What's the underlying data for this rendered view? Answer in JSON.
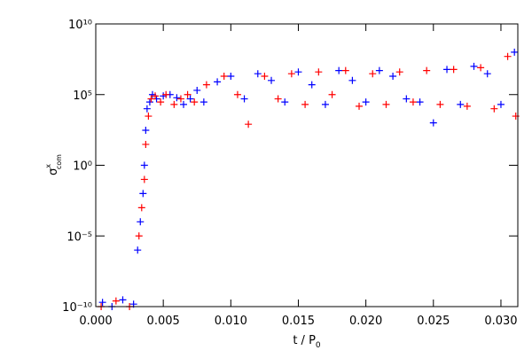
{
  "chart_data": {
    "type": "scatter",
    "xlabel": {
      "base": "t / P",
      "sub": "0"
    },
    "ylabel": {
      "base": "σ",
      "sup": "x",
      "sub": "com"
    },
    "xlim": [
      0,
      0.03125
    ],
    "ylim": [
      1e-10,
      10000000000.0
    ],
    "ylog": true,
    "xticks": [
      {
        "value": 0,
        "label": "0.000"
      },
      {
        "value": 0.005,
        "label": "0.005"
      },
      {
        "value": 0.01,
        "label": "0.010"
      },
      {
        "value": 0.015,
        "label": "0.015"
      },
      {
        "value": 0.02,
        "label": "0.020"
      },
      {
        "value": 0.025,
        "label": "0.025"
      },
      {
        "value": 0.03,
        "label": "0.030"
      }
    ],
    "yticks": [
      {
        "value": 1e-10,
        "label": "10⁻¹⁰"
      },
      {
        "value": 1e-05,
        "label": "10⁻⁵"
      },
      {
        "value": 1,
        "label": "10⁰"
      },
      {
        "value": 100000.0,
        "label": "10⁵"
      },
      {
        "value": 10000000000.0,
        "label": "10¹⁰"
      }
    ],
    "series": [
      {
        "color": "#0000ff",
        "x": [
          0.0005,
          0.0012,
          0.002,
          0.0028,
          0.0031,
          0.0033,
          0.0035,
          0.0036,
          0.0037,
          0.0038,
          0.004,
          0.0042,
          0.0045,
          0.005,
          0.0055,
          0.006,
          0.0065,
          0.007,
          0.0075,
          0.008,
          0.009,
          0.01,
          0.011,
          0.012,
          0.013,
          0.014,
          0.015,
          0.016,
          0.017,
          0.018,
          0.019,
          0.02,
          0.021,
          0.022,
          0.023,
          0.024,
          0.025,
          0.026,
          0.027,
          0.028,
          0.029,
          0.03,
          0.031
        ],
        "values": [
          2e-10,
          1e-10,
          3e-10,
          1.5e-10,
          1e-06,
          0.0001,
          0.01,
          1,
          300,
          10000,
          30000,
          100000,
          50000,
          80000,
          100000,
          60000,
          20000,
          50000,
          200000,
          30000,
          800000,
          2000000,
          50000,
          3000000,
          1000000,
          30000,
          4000000,
          500000,
          20000,
          5000000,
          1000000,
          30000,
          5000000,
          2000000,
          50000,
          30000,
          1000,
          6000000,
          20000,
          10000000,
          3000000,
          20000,
          100000000
        ]
      },
      {
        "color": "#ff0000",
        "x": [
          0.0004,
          0.0015,
          0.0025,
          0.0032,
          0.0034,
          0.0036,
          0.0037,
          0.0039,
          0.0041,
          0.0044,
          0.0048,
          0.0052,
          0.0058,
          0.0063,
          0.0068,
          0.0073,
          0.0082,
          0.0095,
          0.0105,
          0.0113,
          0.0125,
          0.0135,
          0.0145,
          0.0155,
          0.0165,
          0.0175,
          0.0185,
          0.0195,
          0.0205,
          0.0215,
          0.0225,
          0.0235,
          0.0245,
          0.0255,
          0.0265,
          0.0275,
          0.0285,
          0.0295,
          0.0305,
          0.0311
        ],
        "values": [
          1e-10,
          2.5e-10,
          1e-10,
          1e-05,
          0.001,
          0.1,
          30,
          3000,
          50000,
          80000,
          30000,
          100000,
          20000,
          50000,
          100000,
          30000,
          500000,
          2000000,
          100000,
          800,
          2000000,
          50000,
          3000000,
          20000,
          4000000,
          100000,
          5000000,
          15000,
          3000000,
          20000,
          4000000,
          30000,
          5000000,
          20000,
          6000000,
          15000,
          8000000,
          10000,
          50000000,
          3000
        ]
      }
    ]
  }
}
